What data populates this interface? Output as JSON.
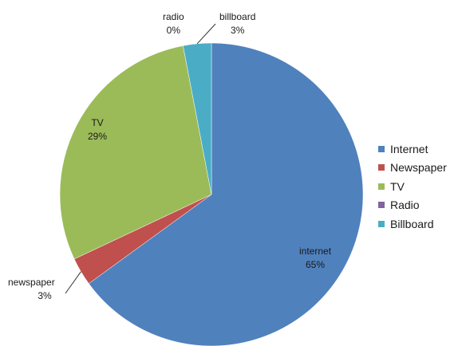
{
  "chart_data": {
    "type": "pie",
    "title": "",
    "slices": [
      {
        "legend": "Internet",
        "label": "internet",
        "value": 65,
        "value_label": "65%",
        "color": "#4F81BD"
      },
      {
        "legend": "Newspaper",
        "label": "newspaper",
        "value": 3,
        "value_label": "3%",
        "color": "#C0504D"
      },
      {
        "legend": "TV",
        "label": "TV",
        "value": 29,
        "value_label": "29%",
        "color": "#9BBB59"
      },
      {
        "legend": "Radio",
        "label": "radio",
        "value": 0,
        "value_label": "0%",
        "color": "#8064A2"
      },
      {
        "legend": "Billboard",
        "label": "billboard",
        "value": 3,
        "value_label": "3%",
        "color": "#4BACC6"
      }
    ],
    "start_angle_deg": 0,
    "direction": "clockwise",
    "legend_position": "right"
  }
}
